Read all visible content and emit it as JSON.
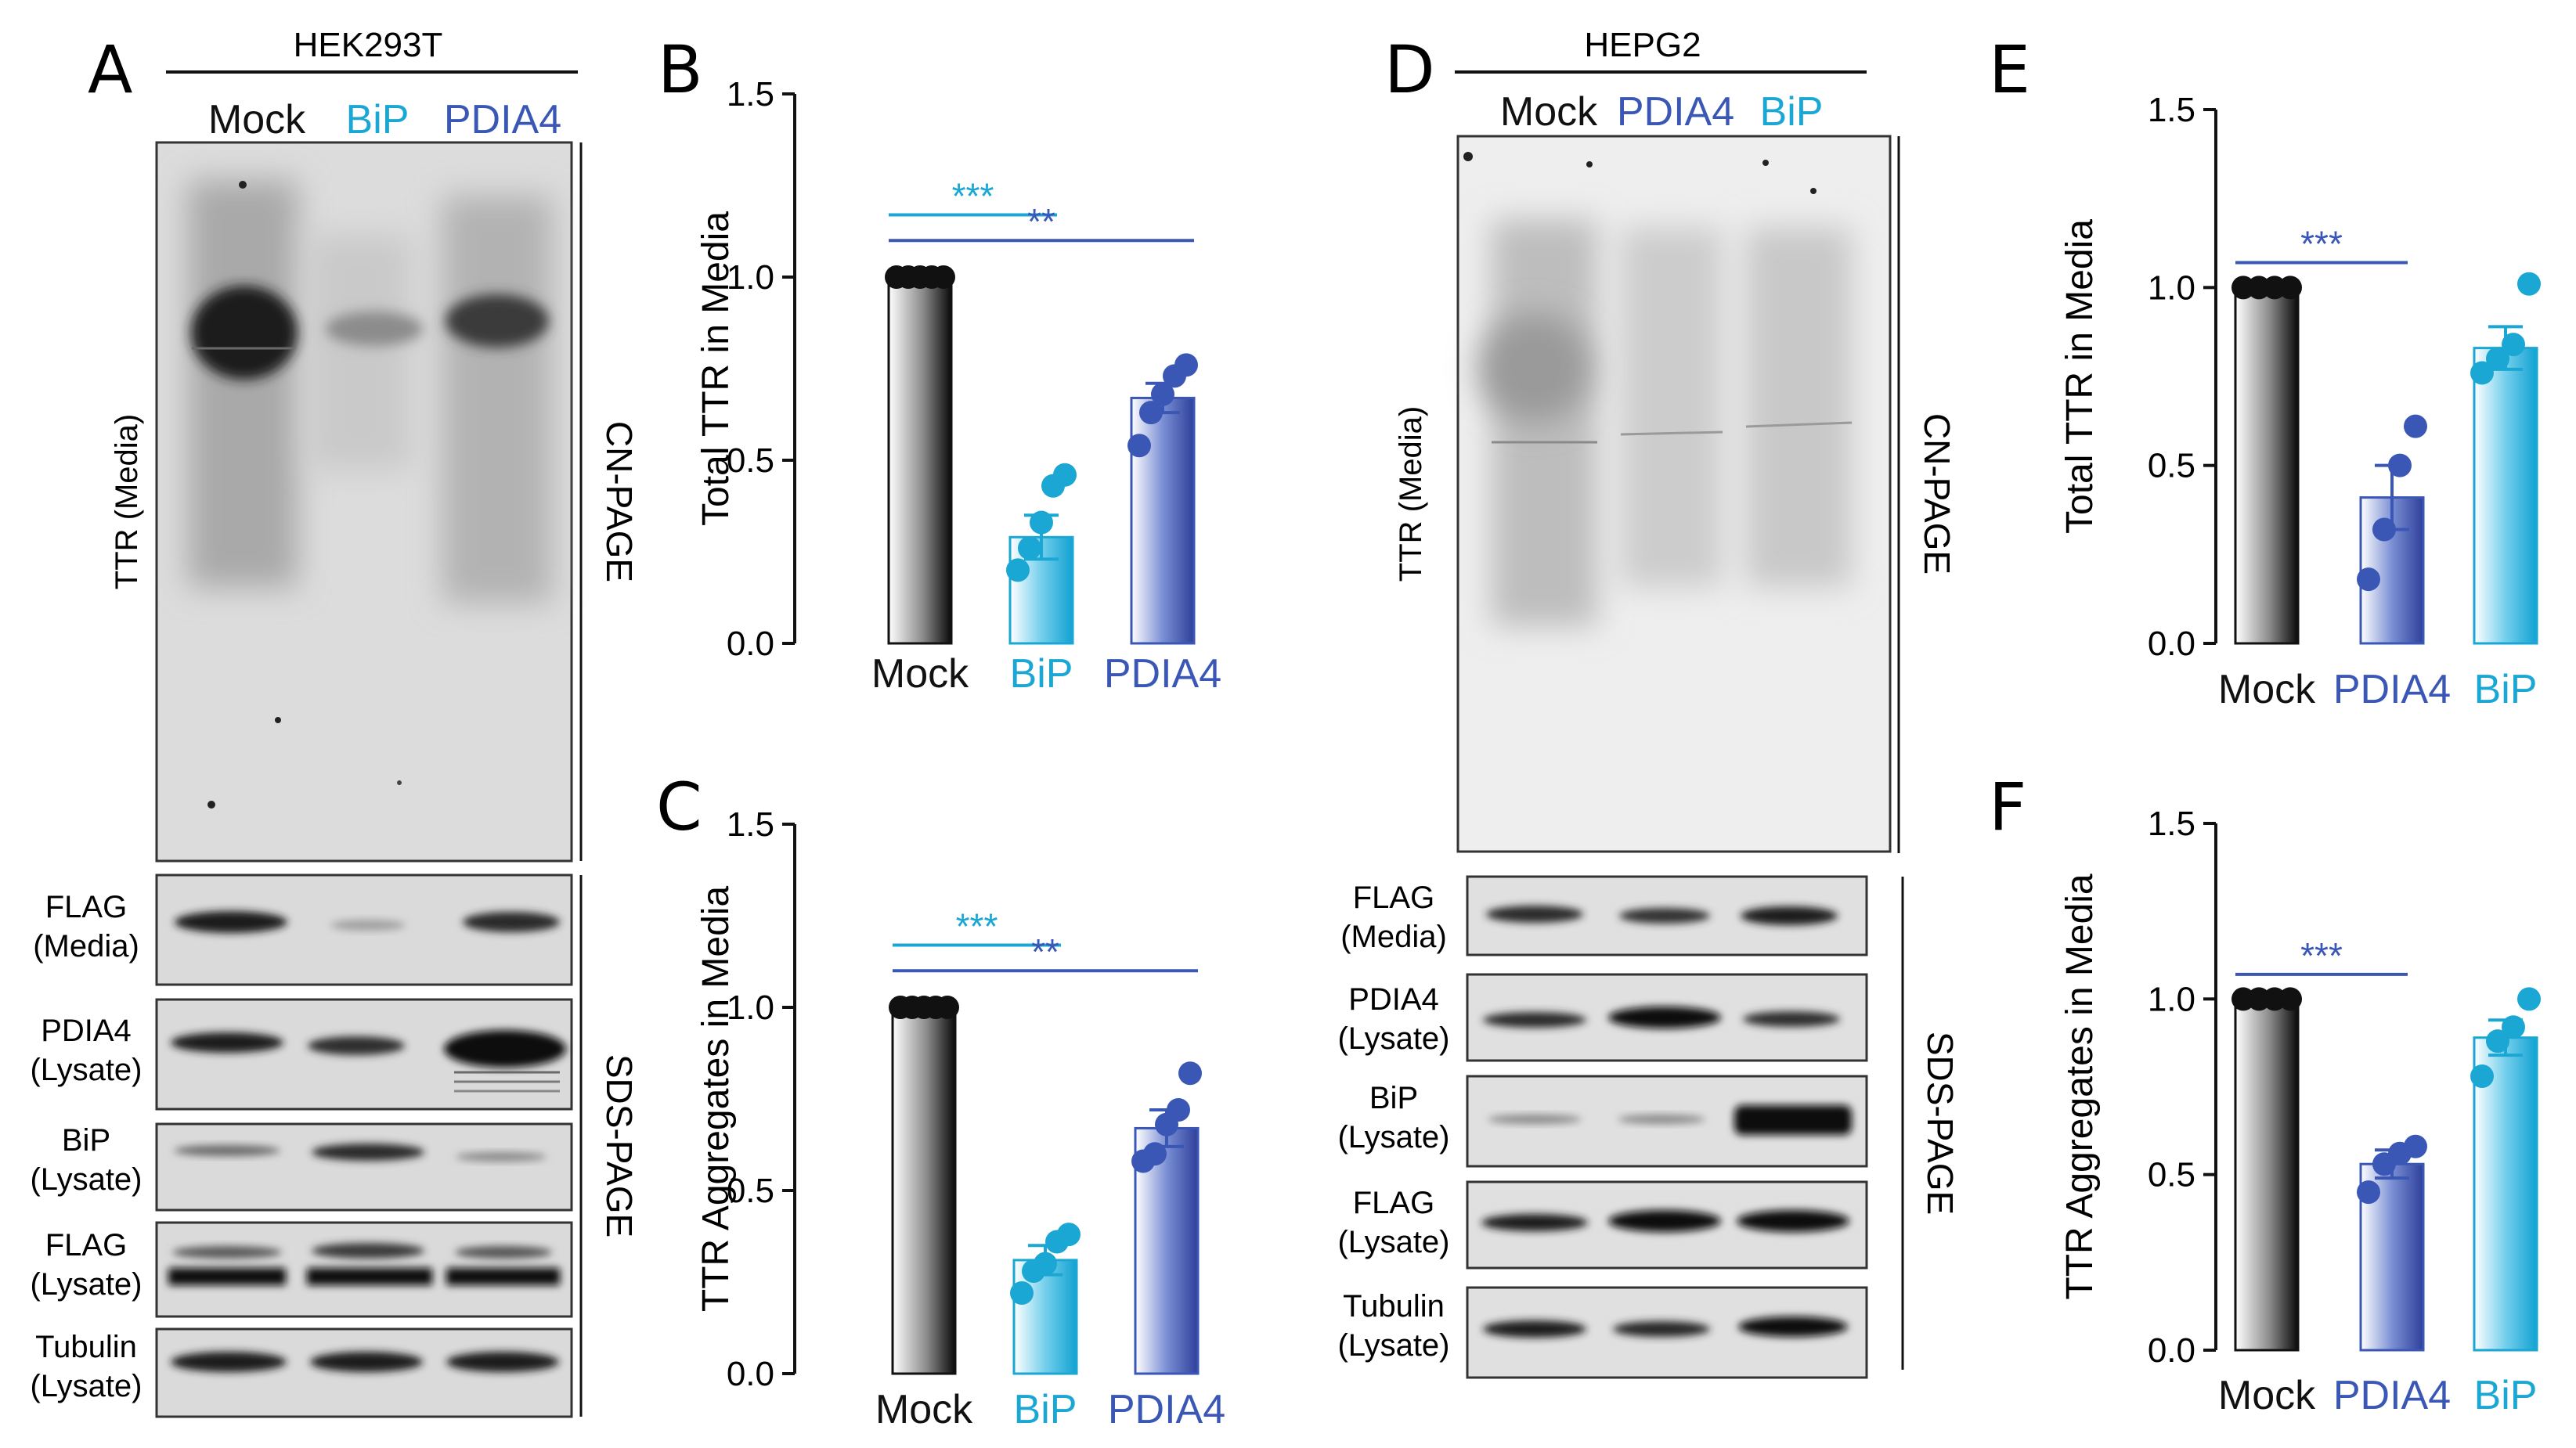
{
  "colors": {
    "bip": "#1aa7d4",
    "pdia4": "#3a57b5",
    "mock": "#111111",
    "ink": "#111111"
  },
  "panels": {
    "a": {
      "letter": "A",
      "cell_line": "HEK293T",
      "lanes": [
        {
          "label": "Mock",
          "color": "#111111"
        },
        {
          "label": "BiP",
          "color": "#1aa7d4"
        },
        {
          "label": "PDIA4",
          "color": "#3a57b5"
        }
      ],
      "main_blot_label": "TTR (Media)",
      "cn_page_label": "CN-PAGE",
      "sds_page_label": "SDS-PAGE",
      "rows": [
        {
          "name": "FLAG",
          "sub": "(Media)"
        },
        {
          "name": "PDIA4",
          "sub": "(Lysate)"
        },
        {
          "name": "BiP",
          "sub": "(Lysate)"
        },
        {
          "name": "FLAG",
          "sub": "(Lysate)"
        },
        {
          "name": "Tubulin",
          "sub": "(Lysate)"
        }
      ]
    },
    "d": {
      "letter": "D",
      "cell_line": "HEPG2",
      "lanes": [
        {
          "label": "Mock",
          "color": "#111111"
        },
        {
          "label": "PDIA4",
          "color": "#3a57b5"
        },
        {
          "label": "BiP",
          "color": "#1aa7d4"
        }
      ],
      "main_blot_label": "TTR (Media)",
      "cn_page_label": "CN-PAGE",
      "sds_page_label": "SDS-PAGE",
      "rows": [
        {
          "name": "FLAG",
          "sub": "(Media)"
        },
        {
          "name": "PDIA4",
          "sub": "(Lysate)"
        },
        {
          "name": "BiP",
          "sub": "(Lysate)"
        },
        {
          "name": "FLAG",
          "sub": "(Lysate)"
        },
        {
          "name": "Tubulin",
          "sub": "(Lysate)"
        }
      ]
    }
  },
  "chart_data": [
    {
      "panel": "B",
      "type": "bar",
      "ylabel": "Total TTR in Media",
      "ylim": [
        0,
        1.5
      ],
      "yticks": [
        "0.0",
        "0.5",
        "1.0",
        "1.5"
      ],
      "categories": [
        "Mock",
        "BiP",
        "PDIA4"
      ],
      "category_colors": [
        "#111111",
        "#1aa7d4",
        "#3a57b5"
      ],
      "values": [
        1.0,
        0.29,
        0.67
      ],
      "sem": [
        0.0,
        0.06,
        0.04
      ],
      "points": [
        [
          1,
          1,
          1,
          1,
          1
        ],
        [
          0.2,
          0.26,
          0.33,
          0.43,
          0.46
        ],
        [
          0.54,
          0.63,
          0.68,
          0.73,
          0.76
        ]
      ],
      "significance": [
        {
          "from": 0,
          "to": 1,
          "label": "***",
          "color": "#1aa7d4"
        },
        {
          "from": 0,
          "to": 2,
          "label": "**",
          "color": "#3a57b5"
        }
      ]
    },
    {
      "panel": "C",
      "type": "bar",
      "ylabel": "TTR Aggregates in Media",
      "ylim": [
        0,
        1.5
      ],
      "yticks": [
        "0.0",
        "0.5",
        "1.0",
        "1.5"
      ],
      "categories": [
        "Mock",
        "BiP",
        "PDIA4"
      ],
      "category_colors": [
        "#111111",
        "#1aa7d4",
        "#3a57b5"
      ],
      "values": [
        1.0,
        0.31,
        0.67
      ],
      "sem": [
        0.0,
        0.04,
        0.05
      ],
      "points": [
        [
          1,
          1,
          1,
          1,
          1
        ],
        [
          0.22,
          0.28,
          0.3,
          0.36,
          0.38
        ],
        [
          0.58,
          0.6,
          0.68,
          0.72,
          0.82
        ]
      ],
      "significance": [
        {
          "from": 0,
          "to": 1,
          "label": "***",
          "color": "#1aa7d4"
        },
        {
          "from": 0,
          "to": 2,
          "label": "**",
          "color": "#3a57b5"
        }
      ]
    },
    {
      "panel": "E",
      "type": "bar",
      "ylabel": "Total TTR in Media",
      "ylim": [
        0,
        1.5
      ],
      "yticks": [
        "0.0",
        "0.5",
        "1.0",
        "1.5"
      ],
      "categories": [
        "Mock",
        "PDIA4",
        "BiP"
      ],
      "category_colors": [
        "#111111",
        "#3a57b5",
        "#1aa7d4"
      ],
      "values": [
        1.0,
        0.41,
        0.83
      ],
      "sem": [
        0.0,
        0.09,
        0.06
      ],
      "points": [
        [
          1,
          1,
          1,
          1
        ],
        [
          0.18,
          0.32,
          0.5,
          0.61
        ],
        [
          0.76,
          0.8,
          0.84,
          1.01
        ]
      ],
      "significance": [
        {
          "from": 0,
          "to": 1,
          "label": "***",
          "color": "#3a57b5"
        }
      ]
    },
    {
      "panel": "F",
      "type": "bar",
      "ylabel": "TTR Aggregates in Media",
      "ylim": [
        0,
        1.5
      ],
      "yticks": [
        "0.0",
        "0.5",
        "1.0",
        "1.5"
      ],
      "categories": [
        "Mock",
        "PDIA4",
        "BiP"
      ],
      "category_colors": [
        "#111111",
        "#3a57b5",
        "#1aa7d4"
      ],
      "values": [
        1.0,
        0.53,
        0.89
      ],
      "sem": [
        0.0,
        0.04,
        0.05
      ],
      "points": [
        [
          1,
          1,
          1,
          1
        ],
        [
          0.45,
          0.53,
          0.56,
          0.58
        ],
        [
          0.78,
          0.88,
          0.92,
          1.0
        ]
      ],
      "significance": [
        {
          "from": 0,
          "to": 1,
          "label": "***",
          "color": "#3a57b5"
        }
      ]
    }
  ]
}
